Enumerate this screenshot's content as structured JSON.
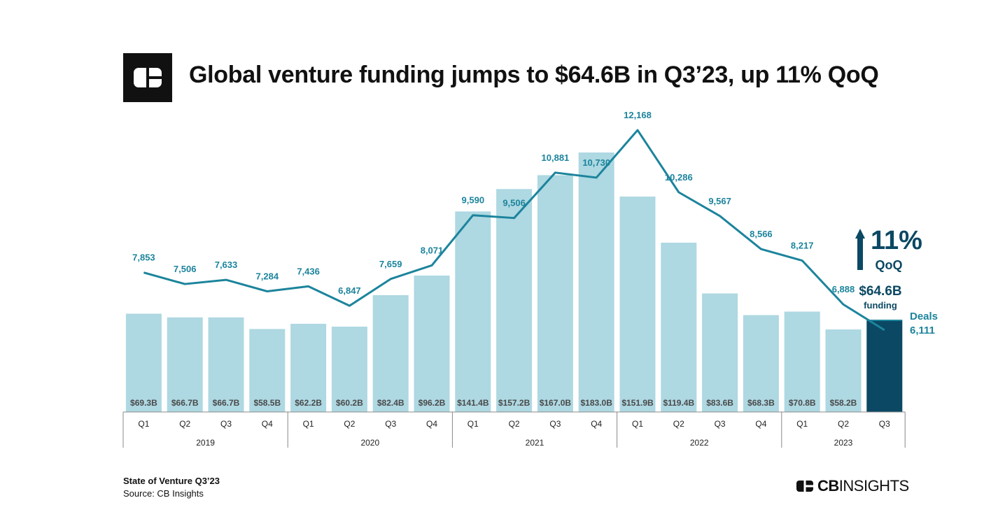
{
  "header": {
    "title": "Global venture funding jumps to $64.6B in Q3’23, up 11% QoQ",
    "logo_icon": "cb-logo-icon"
  },
  "colors": {
    "bar": "#aed8e2",
    "bar_highlight": "#0b4863",
    "line": "#1c849c",
    "label_dark": "#0b4863",
    "axis": "#888888"
  },
  "callout": {
    "percent": "11%",
    "qoq": "QoQ",
    "funding_value": "$64.6B",
    "funding_label": "funding",
    "deals_label": "Deals",
    "deals_value": "6,111",
    "arrow_icon": "up-arrow-icon"
  },
  "chart_data": {
    "type": "bar",
    "title": "Global venture funding jumps to $64.6B in Q3’23, up 11% QoQ",
    "categories": [
      "Q1",
      "Q2",
      "Q3",
      "Q4",
      "Q1",
      "Q2",
      "Q3",
      "Q4",
      "Q1",
      "Q2",
      "Q3",
      "Q4",
      "Q1",
      "Q2",
      "Q3",
      "Q4",
      "Q1",
      "Q2",
      "Q3"
    ],
    "years": [
      {
        "label": "2019",
        "count": 4
      },
      {
        "label": "2020",
        "count": 4
      },
      {
        "label": "2021",
        "count": 4
      },
      {
        "label": "2022",
        "count": 4
      },
      {
        "label": "2023",
        "count": 3
      }
    ],
    "series": [
      {
        "name": "Funding ($B)",
        "type": "bar",
        "values": [
          69.3,
          66.7,
          66.7,
          58.5,
          62.2,
          60.2,
          82.4,
          96.2,
          141.4,
          157.2,
          167.0,
          183.0,
          151.9,
          119.4,
          83.6,
          68.3,
          70.8,
          58.2,
          64.6
        ],
        "labels": [
          "$69.3B",
          "$66.7B",
          "$66.7B",
          "$58.5B",
          "$62.2B",
          "$60.2B",
          "$82.4B",
          "$96.2B",
          "$141.4B",
          "$157.2B",
          "$167.0B",
          "$183.0B",
          "$151.9B",
          "$119.4B",
          "$83.6B",
          "$68.3B",
          "$70.8B",
          "$58.2B",
          ""
        ]
      },
      {
        "name": "Deals",
        "type": "line",
        "values": [
          7853,
          7506,
          7633,
          7284,
          7436,
          6847,
          7659,
          8071,
          9590,
          9506,
          10881,
          10730,
          12168,
          10286,
          9567,
          8566,
          8217,
          6888,
          6111
        ],
        "labels": [
          "7,853",
          "7,506",
          "7,633",
          "7,284",
          "7,436",
          "6,847",
          "7,659",
          "8,071",
          "9,590",
          "9,506",
          "10,881",
          "10,730",
          "12,168",
          "10,286",
          "9,567",
          "8,566",
          "8,217",
          "6,888",
          ""
        ]
      }
    ],
    "highlight_index": 18
  },
  "footer": {
    "report": "State of Venture Q3’23",
    "source": "Source: CB Insights",
    "brand_bold": "CB",
    "brand_rest": "INSIGHTS",
    "brand_icon": "cb-insights-logo-icon"
  }
}
